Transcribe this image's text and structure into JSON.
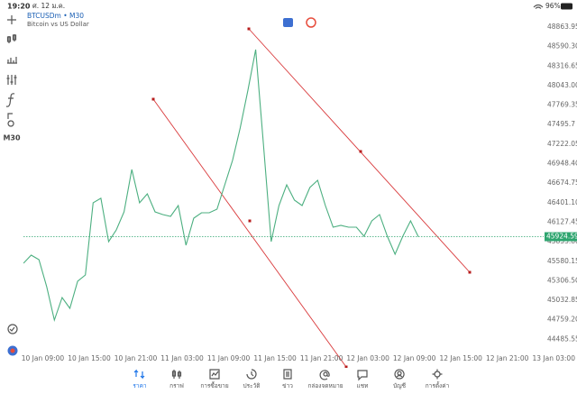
{
  "status_bar": {
    "time": "19:20",
    "date": "ศ. 12 ม.ค.",
    "battery": "96%"
  },
  "chart_header": {
    "symbol": "BTCUSDm • M30",
    "description": "Bitcoin vs US Dollar"
  },
  "toolbar": {
    "timeframe": "M30"
  },
  "chart_data": {
    "type": "line",
    "color": "#4caf80",
    "x": [
      "10 Jan 06:30",
      "10 Jan 07:30",
      "10 Jan 08:30",
      "10 Jan 09:30",
      "10 Jan 10:30",
      "10 Jan 11:30",
      "10 Jan 12:30",
      "10 Jan 13:30",
      "10 Jan 14:30",
      "10 Jan 15:30",
      "10 Jan 16:30",
      "10 Jan 17:30",
      "10 Jan 18:30",
      "10 Jan 19:30",
      "10 Jan 20:30",
      "10 Jan 21:30",
      "10 Jan 22:30",
      "10 Jan 23:30",
      "11 Jan 00:30",
      "11 Jan 01:30",
      "11 Jan 02:30",
      "11 Jan 03:30",
      "11 Jan 04:30",
      "11 Jan 05:30",
      "11 Jan 06:30",
      "11 Jan 07:30",
      "11 Jan 08:30",
      "11 Jan 09:30",
      "11 Jan 10:30",
      "11 Jan 11:30",
      "11 Jan 12:30",
      "11 Jan 13:30",
      "11 Jan 14:30",
      "11 Jan 15:30",
      "11 Jan 16:30",
      "11 Jan 17:30",
      "11 Jan 18:30",
      "11 Jan 19:30",
      "11 Jan 20:30",
      "11 Jan 21:30",
      "11 Jan 22:30",
      "11 Jan 23:30",
      "12 Jan 00:30",
      "12 Jan 01:30",
      "12 Jan 02:30",
      "12 Jan 03:30",
      "12 Jan 04:30",
      "12 Jan 05:30",
      "12 Jan 06:30",
      "12 Jan 07:30",
      "12 Jan 08:30",
      "12 Jan 09:30"
    ],
    "values": [
      45552,
      45666,
      45603,
      45224,
      44756,
      45072,
      44920,
      45300,
      45388,
      46400,
      46463,
      45856,
      46020,
      46273,
      46867,
      46400,
      46526,
      46273,
      46235,
      46210,
      46361,
      45805,
      46184,
      46260,
      46260,
      46311,
      46652,
      46993,
      47448,
      47979,
      48548,
      47221,
      45856,
      46361,
      46652,
      46437,
      46361,
      46614,
      46715,
      46361,
      46058,
      46083,
      46058,
      46058,
      45932,
      46146,
      46235,
      45932,
      45679,
      45932,
      46146,
      45925
    ],
    "xlim": [
      "10 Jan 06:30",
      "13 Jan 06:00"
    ],
    "xticks": [
      "10 Jan 09:00",
      "10 Jan 15:00",
      "10 Jan 21:00",
      "11 Jan 03:00",
      "11 Jan 09:00",
      "11 Jan 15:00",
      "11 Jan 21:00",
      "12 Jan 03:00",
      "12 Jan 09:00",
      "12 Jan 15:00",
      "12 Jan 21:00",
      "13 Jan 03:00"
    ],
    "ylim": [
      44086,
      49066
    ],
    "yticks": [
      48863.95,
      {
        "value": 48590.3,
        "label": "48590.30"
      },
      48316.65,
      {
        "value": 48043,
        "label": "48043.00"
      },
      47769.35,
      47495.7,
      47222.05,
      {
        "value": 46948.4,
        "label": "46948.40"
      },
      46674.75,
      {
        "value": 46401.1,
        "label": "46401.10"
      },
      46127.45,
      {
        "value": 45853.8,
        "label": "45853.80"
      },
      45580.15,
      {
        "value": 45306.5,
        "label": "45306.50"
      },
      45032.85,
      {
        "value": 44759.2,
        "label": "44759.20"
      },
      44485.55
    ],
    "current_price": 45924.59,
    "current_price_color": "#2ea56f"
  },
  "bottom_nav": {
    "items": [
      "ราคา",
      "กราฟ",
      "การซื้อขาย",
      "ประวัติ",
      "ข่าว",
      "กล่องจดหมาย",
      "แชท",
      "บัญชี",
      "การตั้งค่า"
    ],
    "active": 0
  }
}
